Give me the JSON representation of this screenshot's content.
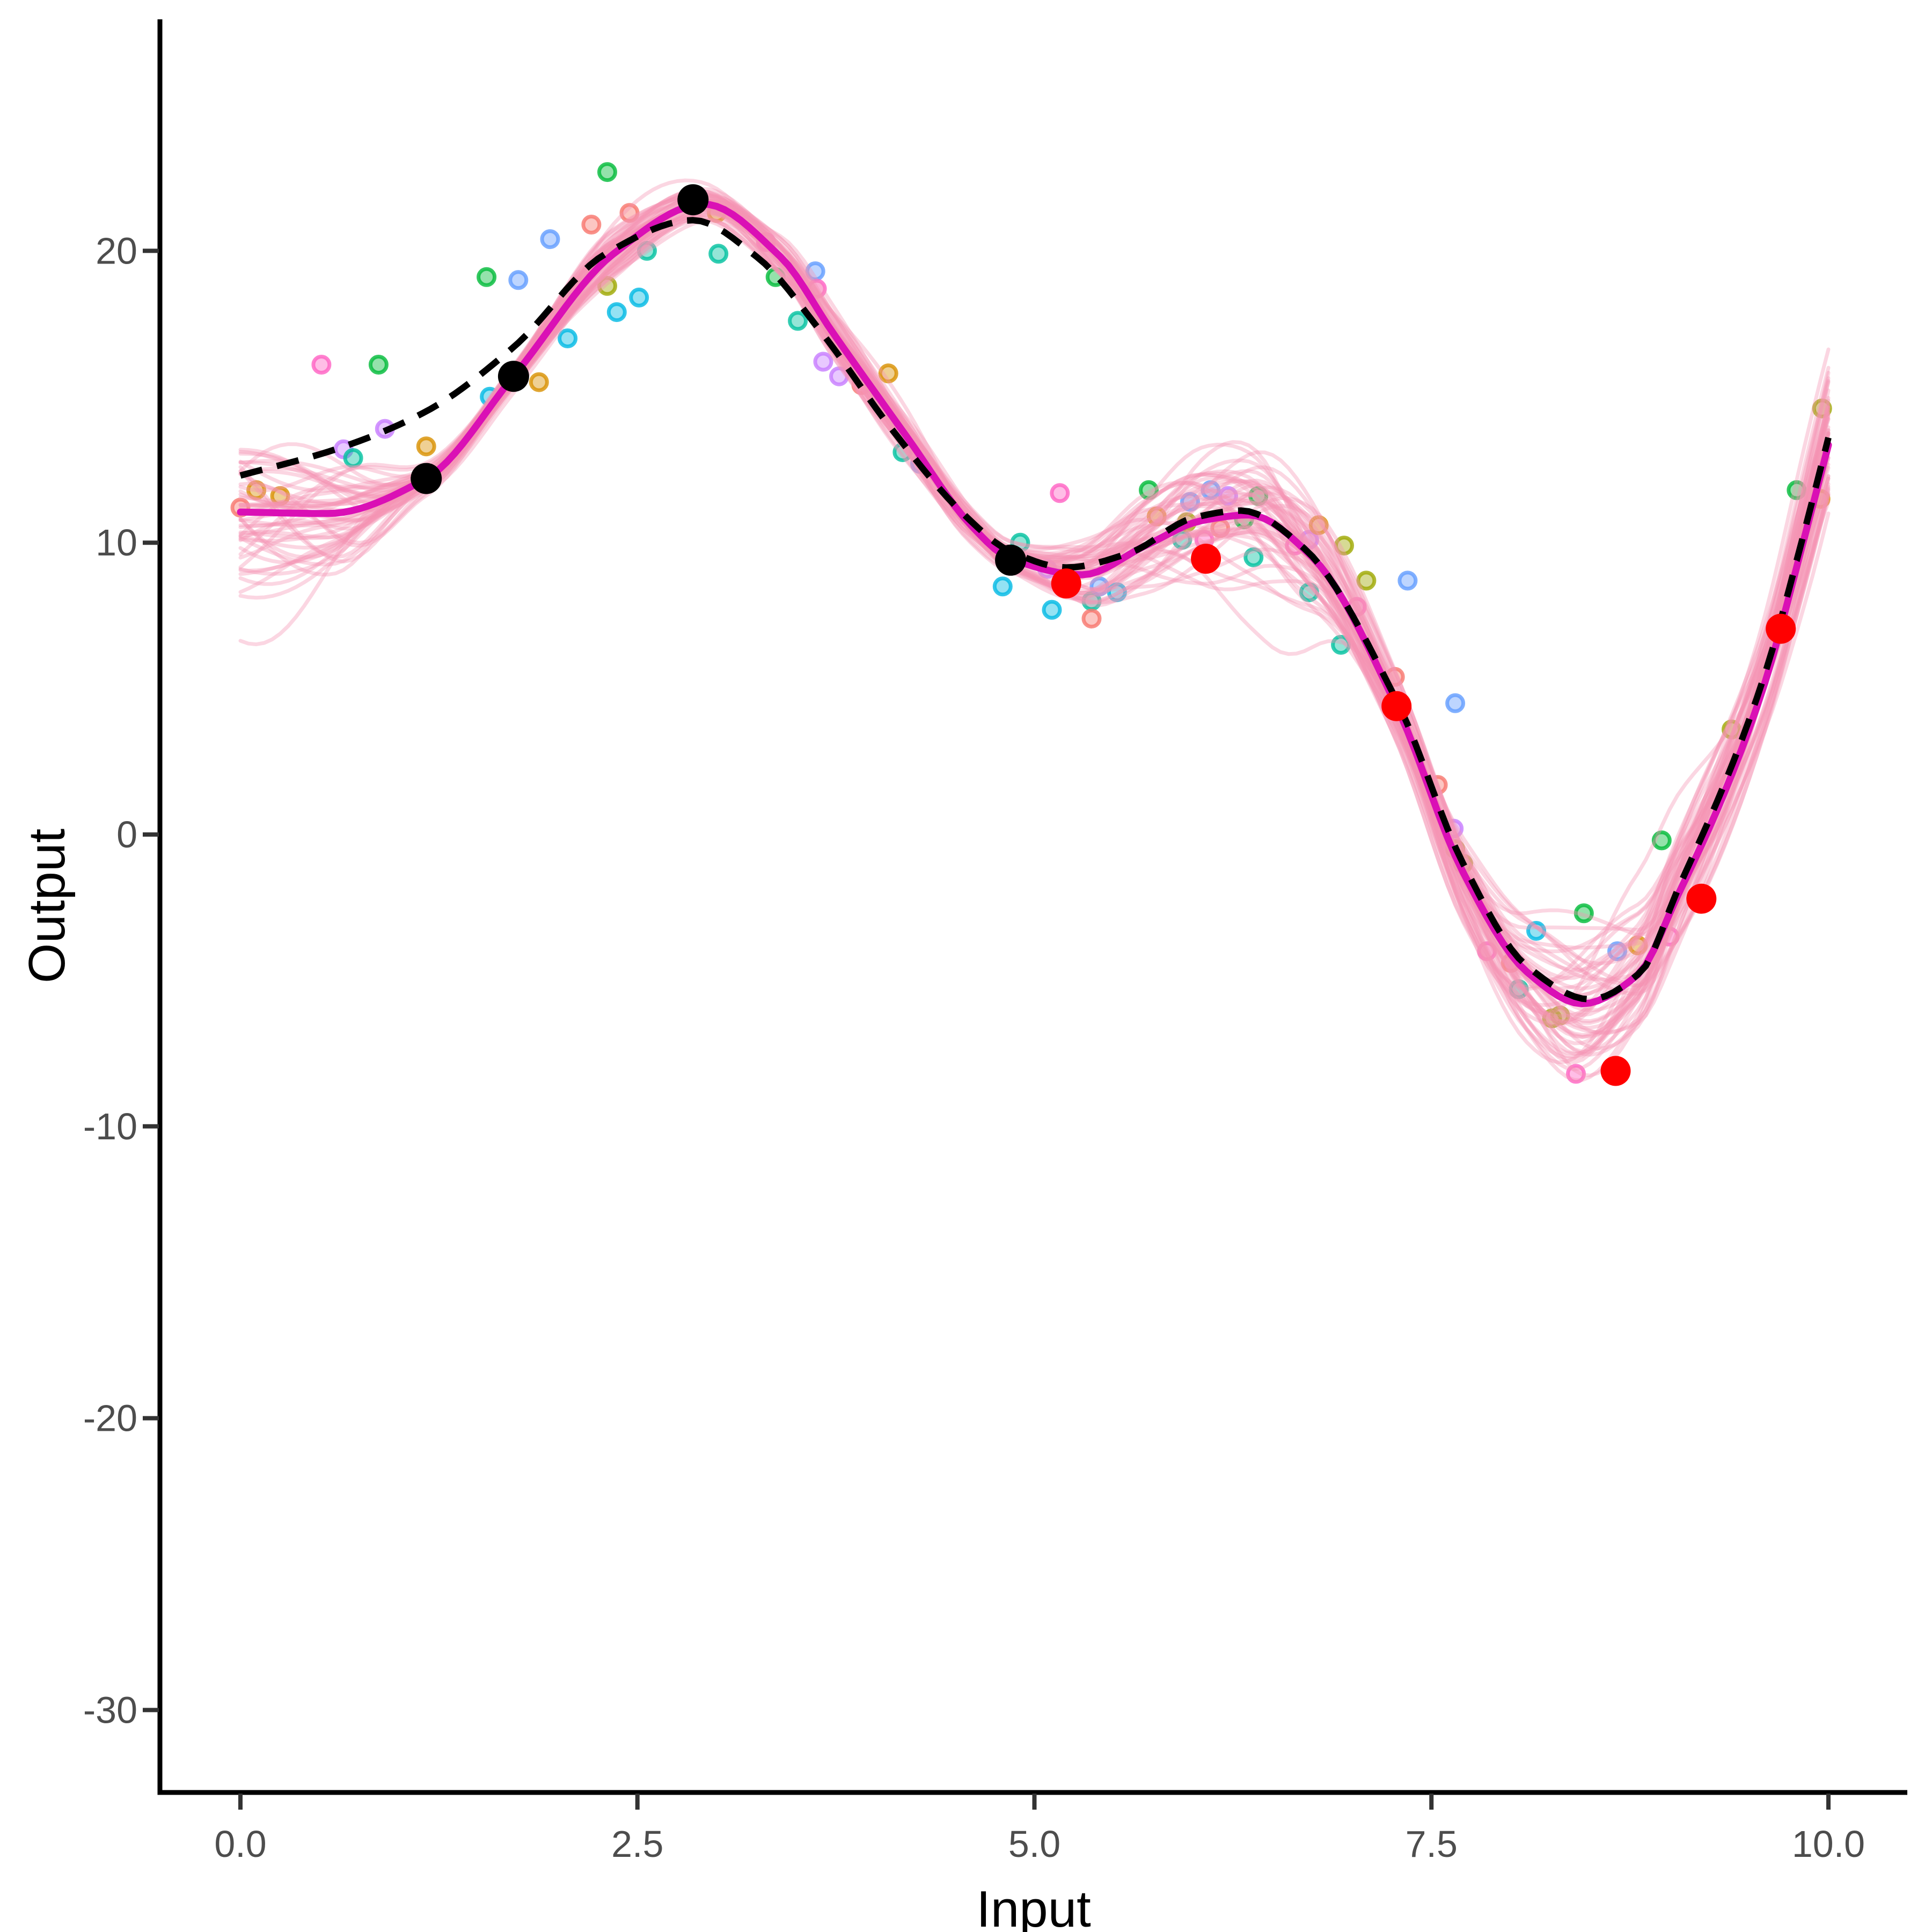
{
  "chart_data": {
    "type": "line+scatter",
    "title": "",
    "xlabel": "Input",
    "ylabel": "Output",
    "x_tick_labels": [
      "0.0",
      "2.5",
      "5.0",
      "7.5",
      "10.0"
    ],
    "x_tick_values": [
      0,
      2.5,
      5,
      7.5,
      10
    ],
    "y_tick_labels": [
      "20",
      "10",
      "0",
      "-10",
      "-20",
      "-30"
    ],
    "y_tick_values": [
      20,
      10,
      0,
      -10,
      -20,
      -30
    ],
    "xlim": [
      -0.5,
      10.5
    ],
    "ylim": [
      -32.8,
      27.9
    ],
    "grid": false,
    "legend": "none",
    "colors": {
      "axis_line": "#000000",
      "tick_mark": "#333333",
      "tick_label": "#4d4d4d",
      "axis_title": "#000000",
      "posterior_sample": "#F593B3",
      "posterior_mean": "#DA10B5",
      "true_function": "#000000",
      "training_point": "#000000",
      "test_point": "#FF0000"
    },
    "palette": {
      "salmon": "#F8766D",
      "gold": "#D89000",
      "olive": "#9DA700",
      "green": "#00BA38",
      "teal": "#00C19F",
      "cyan": "#00B9E3",
      "blue": "#619CFF",
      "violet": "#C77CFF",
      "pink": "#FF61C3"
    },
    "posterior_samples": {
      "count": 48,
      "opacity": 0.38,
      "stroke_width": 7,
      "seed": 20240709,
      "envelope": [
        [
          0,
          3.2
        ],
        [
          0.6,
          2.5
        ],
        [
          1.17,
          0.6
        ],
        [
          1.72,
          0.55
        ],
        [
          2.3,
          0.95
        ],
        [
          2.92,
          0.75
        ],
        [
          3.6,
          1.0
        ],
        [
          4.3,
          0.9
        ],
        [
          4.85,
          0.6
        ],
        [
          5.4,
          1.5
        ],
        [
          6.1,
          2.7
        ],
        [
          6.5,
          2.9
        ],
        [
          7.0,
          1.9
        ],
        [
          7.3,
          1.5
        ],
        [
          7.9,
          2.3
        ],
        [
          8.45,
          3.3
        ],
        [
          9.0,
          2.6
        ],
        [
          9.5,
          2.1
        ],
        [
          10,
          3.3
        ]
      ]
    },
    "posterior_mean": [
      [
        0,
        11.05
      ],
      [
        0.55,
        11.0
      ],
      [
        1.17,
        12.2
      ],
      [
        1.72,
        15.7
      ],
      [
        2.35,
        19.9
      ],
      [
        2.92,
        21.6
      ],
      [
        3.4,
        19.8
      ],
      [
        3.73,
        17.2
      ],
      [
        4.2,
        13.6
      ],
      [
        4.6,
        10.6
      ],
      [
        4.85,
        9.45
      ],
      [
        5.3,
        8.9
      ],
      [
        5.7,
        9.9
      ],
      [
        6.05,
        10.75
      ],
      [
        6.35,
        10.95
      ],
      [
        6.75,
        9.5
      ],
      [
        7.28,
        4.4
      ],
      [
        7.7,
        -1.3
      ],
      [
        8.1,
        -4.7
      ],
      [
        8.45,
        -5.8
      ],
      [
        8.8,
        -4.8
      ],
      [
        9.05,
        -2.1
      ],
      [
        9.35,
        1.5
      ],
      [
        9.6,
        5.2
      ],
      [
        9.85,
        10.2
      ],
      [
        10,
        13.35
      ]
    ],
    "true_function": [
      [
        0,
        12.3
      ],
      [
        0.6,
        13.2
      ],
      [
        1.17,
        14.5
      ],
      [
        1.72,
        16.7
      ],
      [
        2.3,
        19.9
      ],
      [
        2.85,
        21.05
      ],
      [
        3.25,
        19.8
      ],
      [
        3.66,
        17.2
      ],
      [
        4.1,
        13.9
      ],
      [
        4.55,
        11.0
      ],
      [
        4.85,
        9.7
      ],
      [
        5.2,
        9.15
      ],
      [
        5.6,
        9.65
      ],
      [
        6.0,
        10.85
      ],
      [
        6.3,
        11.1
      ],
      [
        6.7,
        9.8
      ],
      [
        7.28,
        4.6
      ],
      [
        7.7,
        -1.0
      ],
      [
        8.1,
        -4.5
      ],
      [
        8.5,
        -5.65
      ],
      [
        8.82,
        -4.7
      ],
      [
        9.05,
        -1.9
      ],
      [
        9.35,
        1.8
      ],
      [
        9.6,
        5.5
      ],
      [
        9.83,
        10.0
      ],
      [
        10,
        13.6
      ]
    ],
    "training_points": [
      [
        1.17,
        12.2
      ],
      [
        1.72,
        15.7
      ],
      [
        2.85,
        21.75
      ],
      [
        4.85,
        9.4
      ]
    ],
    "test_points": [
      [
        5.2,
        8.6
      ],
      [
        6.08,
        9.45
      ],
      [
        7.28,
        4.4
      ],
      [
        8.66,
        -8.1
      ],
      [
        9.2,
        -2.2
      ],
      [
        9.7,
        7.05
      ]
    ],
    "observations": [
      [
        0.0,
        11.2,
        "salmon"
      ],
      [
        0.1,
        11.8,
        "gold"
      ],
      [
        0.25,
        11.6,
        "gold"
      ],
      [
        0.51,
        16.1,
        "pink"
      ],
      [
        0.65,
        13.2,
        "violet"
      ],
      [
        0.71,
        12.9,
        "teal"
      ],
      [
        0.87,
        16.1,
        "green"
      ],
      [
        0.91,
        13.9,
        "violet"
      ],
      [
        1.17,
        13.3,
        "gold"
      ],
      [
        1.55,
        19.1,
        "green"
      ],
      [
        1.57,
        15.0,
        "cyan"
      ],
      [
        1.75,
        19.0,
        "blue"
      ],
      [
        1.88,
        15.5,
        "gold"
      ],
      [
        1.95,
        20.4,
        "blue"
      ],
      [
        2.06,
        17.0,
        "cyan"
      ],
      [
        2.21,
        20.9,
        "salmon"
      ],
      [
        2.31,
        22.7,
        "green"
      ],
      [
        2.31,
        18.8,
        "olive"
      ],
      [
        2.37,
        17.9,
        "cyan"
      ],
      [
        2.45,
        21.3,
        "salmon"
      ],
      [
        2.51,
        18.4,
        "cyan"
      ],
      [
        2.56,
        20.0,
        "teal"
      ],
      [
        3.01,
        19.9,
        "teal"
      ],
      [
        3.0,
        21.3,
        "gold"
      ],
      [
        3.31,
        20.3,
        "pink"
      ],
      [
        3.37,
        19.1,
        "green"
      ],
      [
        3.51,
        17.6,
        "teal"
      ],
      [
        3.62,
        19.3,
        "blue"
      ],
      [
        3.63,
        18.7,
        "pink"
      ],
      [
        3.67,
        16.2,
        "violet"
      ],
      [
        3.77,
        15.7,
        "violet"
      ],
      [
        3.91,
        15.4,
        "salmon"
      ],
      [
        4.08,
        15.8,
        "gold"
      ],
      [
        4.17,
        13.1,
        "teal"
      ],
      [
        4.28,
        12.7,
        "blue"
      ],
      [
        4.8,
        8.5,
        "cyan"
      ],
      [
        4.91,
        10.0,
        "teal"
      ],
      [
        5.08,
        9.1,
        "violet"
      ],
      [
        5.11,
        7.7,
        "cyan"
      ],
      [
        5.16,
        11.7,
        "pink"
      ],
      [
        5.36,
        8.0,
        "teal"
      ],
      [
        5.36,
        7.4,
        "salmon"
      ],
      [
        5.41,
        8.5,
        "blue"
      ],
      [
        5.52,
        8.3,
        "cyan"
      ],
      [
        5.72,
        11.8,
        "green"
      ],
      [
        5.77,
        10.9,
        "gold"
      ],
      [
        5.93,
        10.1,
        "teal"
      ],
      [
        5.96,
        10.7,
        "olive"
      ],
      [
        5.98,
        11.4,
        "blue"
      ],
      [
        6.07,
        10.1,
        "pink"
      ],
      [
        6.11,
        11.8,
        "blue"
      ],
      [
        6.17,
        10.5,
        "salmon"
      ],
      [
        6.22,
        11.6,
        "violet"
      ],
      [
        6.32,
        10.8,
        "green"
      ],
      [
        6.38,
        9.5,
        "teal"
      ],
      [
        6.41,
        11.6,
        "green"
      ],
      [
        6.64,
        9.9,
        "pink"
      ],
      [
        6.73,
        10.1,
        "violet"
      ],
      [
        6.73,
        8.3,
        "teal"
      ],
      [
        6.79,
        10.6,
        "gold"
      ],
      [
        6.93,
        6.5,
        "teal"
      ],
      [
        6.95,
        9.9,
        "olive"
      ],
      [
        7.03,
        7.8,
        "pink"
      ],
      [
        7.09,
        8.7,
        "olive"
      ],
      [
        7.27,
        5.4,
        "salmon"
      ],
      [
        7.35,
        8.7,
        "blue"
      ],
      [
        7.54,
        1.7,
        "salmon"
      ],
      [
        7.64,
        0.2,
        "violet"
      ],
      [
        7.65,
        4.5,
        "blue"
      ],
      [
        7.65,
        -0.5,
        "olive"
      ],
      [
        7.7,
        -1.0,
        "olive"
      ],
      [
        7.85,
        -4.0,
        "pink"
      ],
      [
        8.0,
        -4.4,
        "salmon"
      ],
      [
        8.05,
        -5.3,
        "teal"
      ],
      [
        8.16,
        -3.3,
        "cyan"
      ],
      [
        8.26,
        -6.3,
        "olive"
      ],
      [
        8.31,
        -6.2,
        "olive"
      ],
      [
        8.41,
        -8.2,
        "pink"
      ],
      [
        8.46,
        -2.7,
        "green"
      ],
      [
        8.67,
        -4.0,
        "blue"
      ],
      [
        8.8,
        -3.8,
        "gold"
      ],
      [
        8.95,
        -0.2,
        "green"
      ],
      [
        9.0,
        -3.5,
        "pink"
      ],
      [
        9.39,
        3.6,
        "olive"
      ],
      [
        9.8,
        11.8,
        "green"
      ],
      [
        9.95,
        11.5,
        "gold"
      ],
      [
        9.96,
        14.6,
        "olive"
      ]
    ]
  }
}
